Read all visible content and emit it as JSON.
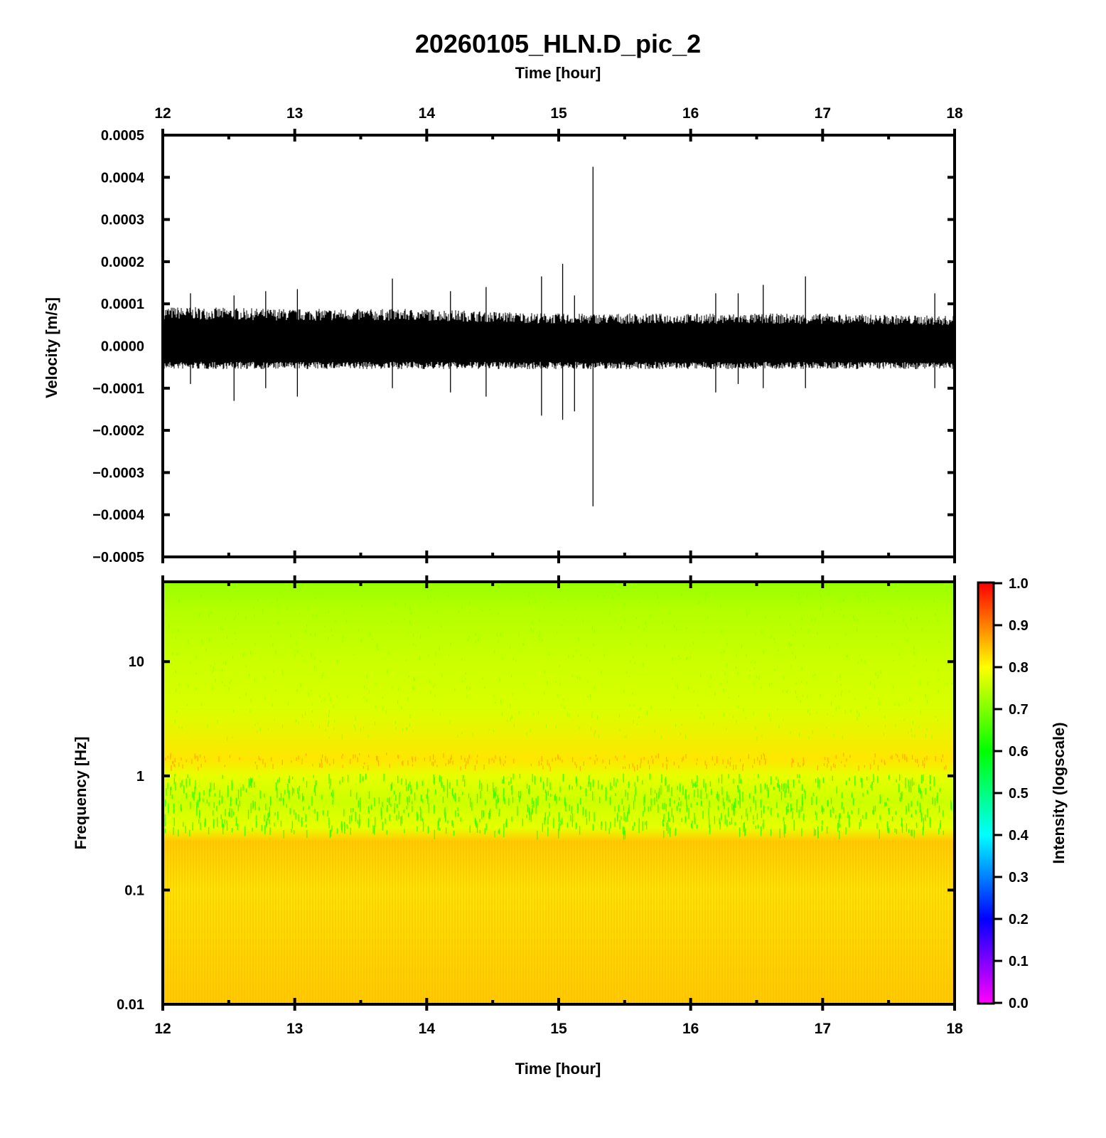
{
  "chart_data": [
    {
      "type": "line",
      "title": "20260105_HLN.D_pic_2",
      "x_top_label": "Time [hour]",
      "xlabel": "",
      "ylabel": "Velocity [m/s]",
      "xlim": [
        12,
        18
      ],
      "ylim": [
        -0.0005,
        0.0005
      ],
      "x_ticks": [
        "12",
        "13",
        "14",
        "15",
        "16",
        "17",
        "18"
      ],
      "y_ticks": [
        "0.0005",
        "0.0004",
        "0.0003",
        "0.0002",
        "0.0001",
        "0.0000",
        "−0.0001",
        "−0.0002",
        "−0.0003",
        "−0.0004",
        "−0.0005"
      ],
      "series": [
        {
          "line_color": "#000000",
          "noise_band": {
            "x": [
              12.0,
              13.0,
              14.0,
              15.0,
              16.0,
              17.0,
              18.0
            ],
            "upper": [
              8.5e-05,
              8e-05,
              8e-05,
              7e-05,
              7e-05,
              7e-05,
              6.5e-05
            ],
            "lower": [
              -5e-05,
              -5e-05,
              -5e-05,
              -5e-05,
              -5e-05,
              -5e-05,
              -5e-05
            ]
          },
          "spikes": [
            {
              "x": 12.21,
              "max": 0.000125,
              "min": -9e-05
            },
            {
              "x": 12.54,
              "max": 0.00012,
              "min": -0.00013
            },
            {
              "x": 12.78,
              "max": 0.00013,
              "min": -0.0001
            },
            {
              "x": 13.02,
              "max": 0.000135,
              "min": -0.00012
            },
            {
              "x": 13.74,
              "max": 0.00016,
              "min": -0.0001
            },
            {
              "x": 14.18,
              "max": 0.00013,
              "min": -0.00011
            },
            {
              "x": 14.45,
              "max": 0.00014,
              "min": -0.00012
            },
            {
              "x": 14.87,
              "max": 0.000165,
              "min": -0.000165
            },
            {
              "x": 15.03,
              "max": 0.000195,
              "min": -0.000175
            },
            {
              "x": 15.12,
              "max": 0.00012,
              "min": -0.000155
            },
            {
              "x": 15.26,
              "max": 0.000425,
              "min": -0.00038
            },
            {
              "x": 16.19,
              "max": 0.000125,
              "min": -0.00011
            },
            {
              "x": 16.36,
              "max": 0.000125,
              "min": -9e-05
            },
            {
              "x": 16.55,
              "max": 0.000145,
              "min": -0.0001
            },
            {
              "x": 16.87,
              "max": 0.000165,
              "min": -0.0001
            },
            {
              "x": 17.85,
              "max": 0.000125,
              "min": -0.0001
            }
          ]
        }
      ]
    },
    {
      "type": "heatmap",
      "xlabel": "Time [hour]",
      "ylabel": "Frequency [Hz]",
      "xlim": [
        12,
        18
      ],
      "ylim": [
        0.01,
        50
      ],
      "y_scale": "log",
      "x_ticks": [
        "12",
        "13",
        "14",
        "15",
        "16",
        "17",
        "18"
      ],
      "y_ticks": [
        {
          "value": 10,
          "label": "10"
        },
        {
          "value": 1,
          "label": "1"
        },
        {
          "value": 0.1,
          "label": "0.1"
        },
        {
          "value": 0.01,
          "label": "0.01"
        }
      ],
      "intensity_by_frequency": [
        {
          "freq": 50,
          "intensity": 0.72
        },
        {
          "freq": 30,
          "intensity": 0.74
        },
        {
          "freq": 10,
          "intensity": 0.76
        },
        {
          "freq": 4,
          "intensity": 0.77
        },
        {
          "freq": 1.4,
          "intensity": 0.82
        },
        {
          "freq": 1.0,
          "intensity": 0.78
        },
        {
          "freq": 0.6,
          "intensity": 0.76
        },
        {
          "freq": 0.35,
          "intensity": 0.78
        },
        {
          "freq": 0.27,
          "intensity": 0.84
        },
        {
          "freq": 0.1,
          "intensity": 0.82
        },
        {
          "freq": 0.01,
          "intensity": 0.84
        }
      ],
      "colorbar": {
        "label": "Intensity (logscale)",
        "range": [
          0.0,
          1.0
        ],
        "ticks": [
          "1.0",
          "0.9",
          "0.8",
          "0.7",
          "0.6",
          "0.5",
          "0.4",
          "0.3",
          "0.2",
          "0.1",
          "0.0"
        ],
        "stops": [
          "#ff00ff",
          "#8000ff",
          "#0000ff",
          "#0080ff",
          "#00ffff",
          "#00ff80",
          "#00ff00",
          "#80ff00",
          "#ffff00",
          "#ff8000",
          "#ff0000"
        ]
      }
    }
  ]
}
